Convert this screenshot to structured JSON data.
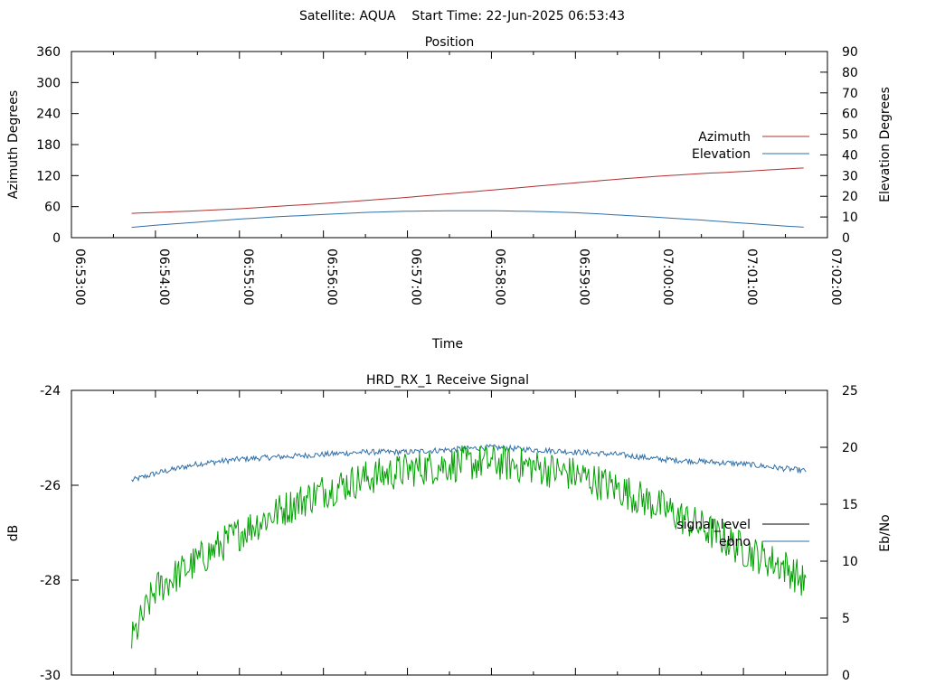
{
  "page_title": "Satellite: AQUA    Start Time: 22-Jun-2025 06:53:43",
  "chart_data": [
    {
      "type": "line",
      "title": "Position",
      "xlabel": "Time",
      "ylabel_left": "Azimuth Degrees",
      "ylabel_right": "Elevation Degrees",
      "x_ticks": [
        "06:53:00",
        "06:54:00",
        "06:55:00",
        "06:56:00",
        "06:57:00",
        "06:58:00",
        "06:59:00",
        "07:00:00",
        "07:01:00",
        "07:02:00"
      ],
      "x_range": [
        "06:53:00",
        "07:02:00"
      ],
      "y_left_ticks": [
        "0",
        "60",
        "120",
        "180",
        "240",
        "300",
        "360"
      ],
      "y_left_range": [
        0,
        360
      ],
      "y_right_ticks": [
        "0",
        "10",
        "20",
        "30",
        "40",
        "50",
        "60",
        "70",
        "80",
        "90"
      ],
      "y_right_range": [
        0,
        90
      ],
      "grid": false,
      "legend_position": "right",
      "series": [
        {
          "name": "Azimuth",
          "axis": "left",
          "color": "#b03030",
          "x": [
            "06:53:43",
            "06:54:30",
            "06:55:00",
            "06:55:30",
            "06:56:00",
            "06:56:30",
            "06:57:00",
            "06:57:30",
            "06:58:00",
            "06:58:30",
            "06:59:00",
            "06:59:30",
            "07:00:00",
            "07:00:30",
            "07:01:00",
            "07:01:30",
            "07:01:45"
          ],
          "y": [
            47,
            52,
            56,
            61,
            66,
            72,
            78,
            85,
            92,
            99,
            106,
            113,
            119,
            124,
            128,
            133,
            135
          ]
        },
        {
          "name": "Elevation",
          "axis": "right",
          "color": "#2f6fa8",
          "x": [
            "06:53:43",
            "06:54:00",
            "06:54:30",
            "06:55:00",
            "06:55:30",
            "06:56:00",
            "06:56:30",
            "06:57:00",
            "06:57:30",
            "06:58:00",
            "06:58:30",
            "06:59:00",
            "06:59:30",
            "07:00:00",
            "07:00:30",
            "07:01:00",
            "07:01:30",
            "07:01:45"
          ],
          "y": [
            5,
            6,
            7.5,
            9,
            10.2,
            11.2,
            12.2,
            12.8,
            13,
            13,
            12.7,
            12.1,
            11,
            9.8,
            8.5,
            7,
            5.6,
            5
          ]
        }
      ]
    },
    {
      "type": "line",
      "title": "HRD_RX_1 Receive Signal",
      "xlabel": "",
      "ylabel_left": "dB",
      "ylabel_right": "Eb/No",
      "x_range": [
        "06:53:00",
        "07:02:00"
      ],
      "y_left_ticks": [
        "-24",
        "-26",
        "-28",
        "-30"
      ],
      "y_left_range": [
        -30,
        -24
      ],
      "y_right_ticks": [
        "0",
        "5",
        "10",
        "15",
        "20",
        "25"
      ],
      "y_right_range": [
        0,
        25
      ],
      "grid": false,
      "legend_position": "right",
      "legend": [
        {
          "name": "signal_level",
          "color": "#000000"
        },
        {
          "name": "ebno",
          "color": "#2f6fa8"
        }
      ],
      "series": [
        {
          "name": "signal_level",
          "axis": "left",
          "color": "#2f6fa8",
          "x": [
            "06:53:43",
            "06:54:00",
            "06:54:30",
            "06:55:00",
            "06:55:30",
            "06:56:00",
            "06:56:30",
            "06:57:00",
            "06:57:30",
            "06:58:00",
            "06:58:30",
            "06:59:00",
            "06:59:30",
            "07:00:00",
            "07:00:30",
            "07:01:00",
            "07:01:30",
            "07:01:45"
          ],
          "y": [
            -25.9,
            -25.75,
            -25.55,
            -25.45,
            -25.4,
            -25.35,
            -25.3,
            -25.3,
            -25.25,
            -25.2,
            -25.25,
            -25.3,
            -25.35,
            -25.45,
            -25.5,
            -25.55,
            -25.65,
            -25.7
          ]
        },
        {
          "name": "ebno",
          "axis": "right",
          "color": "#00a000",
          "x": [
            "06:53:43",
            "06:54:00",
            "06:54:30",
            "06:55:00",
            "06:55:30",
            "06:56:00",
            "06:56:30",
            "06:57:00",
            "06:57:30",
            "06:58:00",
            "06:58:30",
            "06:59:00",
            "06:59:30",
            "07:00:00",
            "07:00:30",
            "07:01:00",
            "07:01:30",
            "07:01:45"
          ],
          "y": [
            3,
            7.5,
            10,
            12.5,
            14.5,
            16.2,
            17.3,
            18,
            18.5,
            18.7,
            18.3,
            17.6,
            16.4,
            14.8,
            13,
            11,
            9.5,
            8
          ]
        }
      ]
    }
  ]
}
